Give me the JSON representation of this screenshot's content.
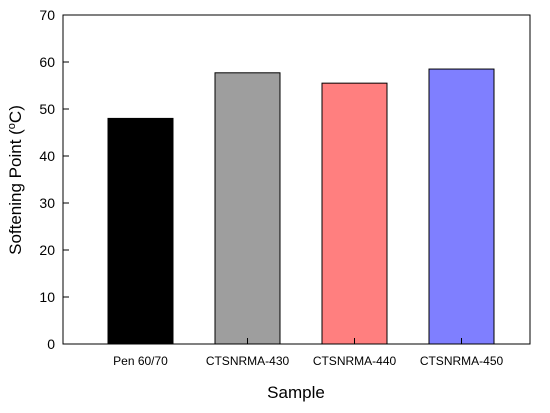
{
  "chart_data": {
    "type": "bar",
    "title": "",
    "xlabel": "Sample",
    "ylabel_main": "Softening Point (",
    "ylabel_super": "o",
    "ylabel_unit": "C)",
    "categories": [
      "Pen 60/70",
      "CTSNRMA-430",
      "CTSNRMA-440",
      "CTSNRMA-450"
    ],
    "values": [
      48,
      57.7,
      55.5,
      58.5
    ],
    "colors": [
      "#000000",
      "#9e9e9e",
      "#ff7f7f",
      "#7f7fff"
    ],
    "ylim": [
      0,
      70
    ],
    "yticks": [
      0,
      10,
      20,
      30,
      40,
      50,
      60,
      70
    ],
    "grid": false,
    "legend": "none"
  }
}
